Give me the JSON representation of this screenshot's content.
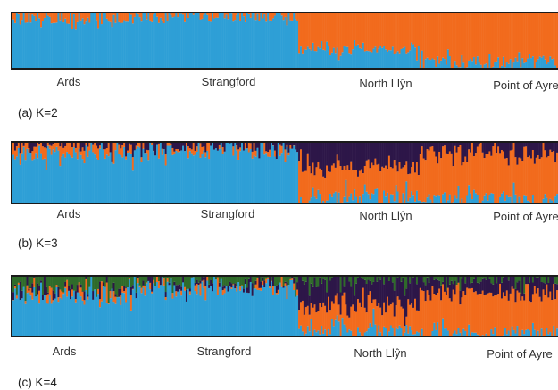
{
  "figure": {
    "colors": {
      "cluster_blue": "#2e9fd6",
      "cluster_orange": "#f26b1d",
      "cluster_purple": "#2d1648",
      "cluster_green": "#2f6b2a",
      "frame": "#1a1a1a"
    }
  },
  "chart_data": [
    {
      "type": "bar",
      "subtype": "stacked-100-structure",
      "caption": "(a) K=2",
      "k": 2,
      "populations": [
        "Ards",
        "Strangford",
        "North Llŷn",
        "Point of Ayre"
      ],
      "ylim": [
        0,
        1
      ],
      "series": [
        {
          "color": "#2e9fd6"
        },
        {
          "color": "#f26b1d"
        }
      ],
      "mean_membership": {
        "Ards": [
          0.9,
          0.1
        ],
        "Strangford": [
          0.94,
          0.06
        ],
        "North Llŷn": [
          0.35,
          0.65
        ],
        "Point of Ayre": [
          0.12,
          0.88
        ]
      }
    },
    {
      "type": "bar",
      "subtype": "stacked-100-structure",
      "caption": "(b) K=3",
      "k": 3,
      "populations": [
        "Ards",
        "Strangford",
        "North Llŷn",
        "Point of Ayre"
      ],
      "ylim": [
        0,
        1
      ],
      "series": [
        {
          "color": "#2e9fd6"
        },
        {
          "color": "#f26b1d"
        },
        {
          "color": "#2d1648"
        }
      ],
      "mean_membership": {
        "Ards": [
          0.82,
          0.14,
          0.04
        ],
        "Strangford": [
          0.92,
          0.03,
          0.05
        ],
        "North Llŷn": [
          0.1,
          0.5,
          0.4
        ],
        "Point of Ayre": [
          0.04,
          0.78,
          0.18
        ]
      }
    },
    {
      "type": "bar",
      "subtype": "stacked-100-structure",
      "caption": "(c) K=4",
      "k": 4,
      "populations": [
        "Ards",
        "Strangford",
        "North Llŷn",
        "Point of Ayre"
      ],
      "ylim": [
        0,
        1
      ],
      "series": [
        {
          "color": "#2e9fd6"
        },
        {
          "color": "#f26b1d"
        },
        {
          "color": "#2d1648"
        },
        {
          "color": "#2f6b2a"
        }
      ],
      "mean_membership": {
        "Ards": [
          0.68,
          0.06,
          0.06,
          0.2
        ],
        "Strangford": [
          0.86,
          0.02,
          0.04,
          0.08
        ],
        "North Llŷn": [
          0.08,
          0.42,
          0.44,
          0.06
        ],
        "Point of Ayre": [
          0.03,
          0.72,
          0.22,
          0.03
        ]
      }
    }
  ]
}
